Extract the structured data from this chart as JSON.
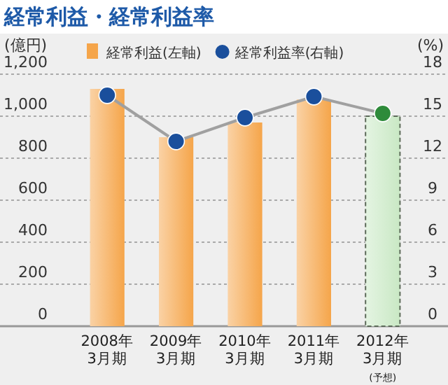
{
  "chart_data": {
    "type": "bar",
    "title": "経常利益・経常利益率",
    "ylabel": "(億円)",
    "y2label": "(%)",
    "categories": [
      "2008年\n3月期",
      "2009年\n3月期",
      "2010年\n3月期",
      "2011年\n3月期",
      "2012年\n3月期\n(予想)"
    ],
    "series": [
      {
        "name": "経常利益(左軸)",
        "color": "#f5a54a",
        "colors": [
          "#f5a54a",
          "#f5a54a",
          "#f5a54a",
          "#f5a54a",
          "#c9e8c4"
        ],
        "values": [
          1130,
          900,
          970,
          1080,
          1000
        ]
      },
      {
        "name": "経常利益率(右軸)",
        "type": "line",
        "axis": "y2",
        "color": "#1a4f9c",
        "colors": [
          "#1a4f9c",
          "#1a4f9c",
          "#1a4f9c",
          "#1a4f9c",
          "#2e8b3a"
        ],
        "values": [
          16.5,
          13.2,
          14.9,
          16.4,
          15.2
        ]
      }
    ],
    "ylim": [
      0,
      1200
    ],
    "yticks": [
      0,
      200,
      400,
      600,
      800,
      {
        "value": 1000,
        "label": "1,000"
      },
      {
        "value": 1200,
        "label": "1,200"
      }
    ],
    "y2lim": [
      0,
      18
    ],
    "y2ticks": [
      0,
      3,
      6,
      9,
      12,
      15,
      18
    ],
    "grid": "y",
    "legend": "top",
    "marker": "circle"
  }
}
